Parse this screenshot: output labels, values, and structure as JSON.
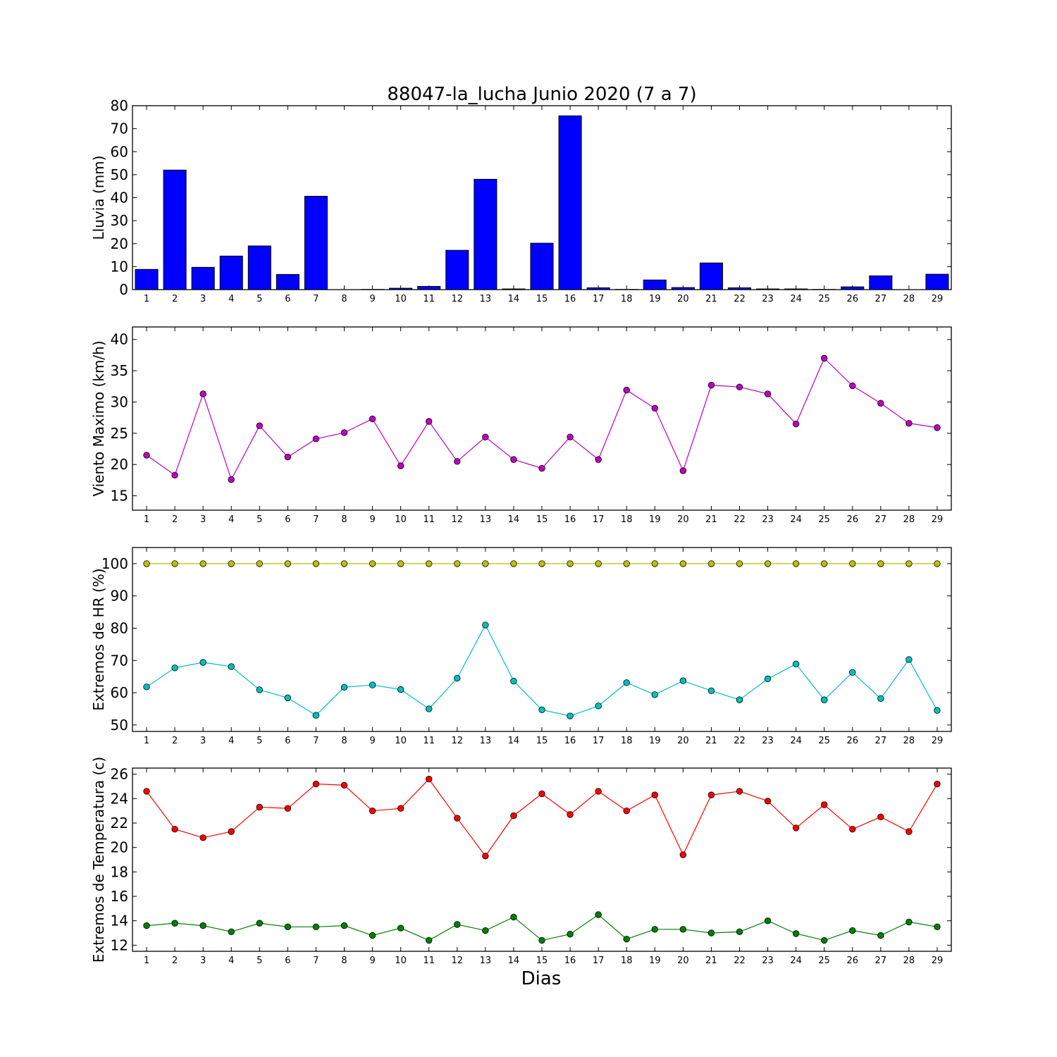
{
  "figure": {
    "title": "88047-la_lucha Junio 2020  (7 a 7)",
    "xlabel": "Dias"
  },
  "chart_data": [
    {
      "type": "bar",
      "ylabel": "Lluvia (mm)",
      "ylim": [
        0,
        80
      ],
      "yticks": [
        0,
        10,
        20,
        30,
        40,
        50,
        60,
        70,
        80
      ],
      "x": [
        1,
        2,
        3,
        4,
        5,
        6,
        7,
        8,
        9,
        10,
        11,
        12,
        13,
        14,
        15,
        16,
        17,
        18,
        19,
        20,
        21,
        22,
        23,
        24,
        25,
        26,
        27,
        28,
        29
      ],
      "series": [
        {
          "color": "#0000ff",
          "values": [
            8.8,
            52.0,
            9.7,
            14.6,
            19.0,
            6.6,
            40.6,
            0.0,
            0.1,
            0.6,
            1.4,
            17.1,
            48.0,
            0.3,
            20.2,
            75.6,
            0.8,
            0.1,
            4.2,
            0.9,
            11.6,
            0.8,
            0.3,
            0.3,
            0.1,
            1.2,
            6.0,
            0.0,
            6.7
          ]
        }
      ]
    },
    {
      "type": "line",
      "ylabel": "Viento Maximo (km/h)",
      "ylim": [
        12.7,
        42
      ],
      "yticks": [
        15,
        20,
        25,
        30,
        35,
        40
      ],
      "x": [
        1,
        2,
        3,
        4,
        5,
        6,
        7,
        8,
        9,
        10,
        11,
        12,
        13,
        14,
        15,
        16,
        17,
        18,
        19,
        20,
        21,
        22,
        23,
        24,
        25,
        26,
        27,
        28,
        29
      ],
      "series": [
        {
          "color": "#bf00bf",
          "values": [
            21.5,
            18.3,
            31.3,
            17.6,
            26.2,
            21.2,
            24.1,
            25.1,
            27.3,
            19.8,
            26.9,
            20.5,
            24.4,
            20.8,
            19.4,
            24.4,
            20.8,
            31.9,
            29.0,
            19.0,
            32.7,
            32.4,
            31.3,
            26.5,
            37.0,
            32.6,
            29.8,
            26.6,
            25.9
          ]
        }
      ]
    },
    {
      "type": "line",
      "ylabel": "Extremos de HR (%)",
      "ylim": [
        48,
        105
      ],
      "yticks": [
        50,
        60,
        70,
        80,
        90,
        100
      ],
      "x": [
        1,
        2,
        3,
        4,
        5,
        6,
        7,
        8,
        9,
        10,
        11,
        12,
        13,
        14,
        15,
        16,
        17,
        18,
        19,
        20,
        21,
        22,
        23,
        24,
        25,
        26,
        27,
        28,
        29
      ],
      "series": [
        {
          "color": "#bfbf00",
          "values": [
            100,
            100,
            100,
            100,
            100,
            100,
            100,
            100,
            100,
            100,
            100,
            100,
            100,
            100,
            100,
            100,
            100,
            100,
            100,
            100,
            100,
            100,
            100,
            100,
            100,
            100,
            100,
            100,
            100
          ]
        },
        {
          "color": "#00bfbf",
          "values": [
            61.8,
            67.7,
            69.4,
            68.1,
            60.9,
            58.4,
            53.0,
            61.7,
            62.4,
            61.0,
            55.0,
            64.5,
            81.0,
            63.6,
            54.7,
            52.8,
            55.9,
            63.1,
            59.4,
            63.7,
            60.6,
            57.8,
            64.3,
            68.9,
            57.8,
            66.3,
            58.2,
            70.3,
            54.5
          ]
        }
      ]
    },
    {
      "type": "line",
      "ylabel": "Extremos de Temperatura (c)",
      "ylim": [
        11.5,
        26.5
      ],
      "yticks": [
        12,
        14,
        16,
        18,
        20,
        22,
        24,
        26
      ],
      "x": [
        1,
        2,
        3,
        4,
        5,
        6,
        7,
        8,
        9,
        10,
        11,
        12,
        13,
        14,
        15,
        16,
        17,
        18,
        19,
        20,
        21,
        22,
        23,
        24,
        25,
        26,
        27,
        28,
        29
      ],
      "series": [
        {
          "color": "#ff0000",
          "values": [
            24.6,
            21.5,
            20.8,
            21.3,
            23.3,
            23.2,
            25.2,
            25.1,
            23.0,
            23.2,
            25.6,
            22.4,
            19.3,
            22.6,
            24.4,
            22.7,
            24.6,
            23.0,
            24.3,
            19.4,
            24.3,
            24.6,
            23.8,
            21.6,
            23.5,
            21.5,
            22.5,
            21.3,
            25.2
          ]
        },
        {
          "color": "#008000",
          "values": [
            13.6,
            13.8,
            13.6,
            13.1,
            13.8,
            13.5,
            13.5,
            13.6,
            12.8,
            13.4,
            12.4,
            13.7,
            13.2,
            14.3,
            12.4,
            12.9,
            14.5,
            12.5,
            13.3,
            13.3,
            13.0,
            13.1,
            14.0,
            12.95,
            12.4,
            13.2,
            12.8,
            13.9,
            13.5
          ]
        }
      ]
    }
  ]
}
